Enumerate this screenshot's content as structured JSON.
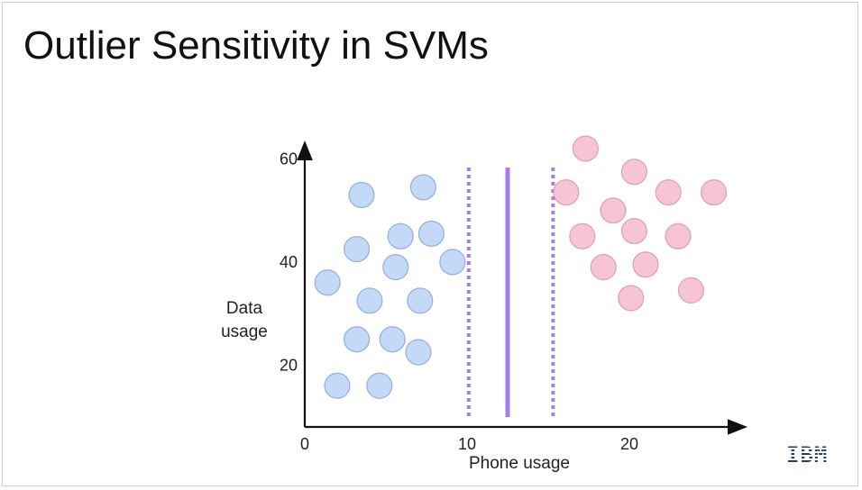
{
  "slide": {
    "title": "Outlier Sensitivity in SVMs",
    "logo_text": "IBM"
  },
  "chart_data": {
    "type": "scatter",
    "xlabel": "Phone usage",
    "ylabel_lines": [
      "Data",
      "usage"
    ],
    "xlim": [
      0,
      26
    ],
    "ylim": [
      8,
      62
    ],
    "x_ticks": [
      0,
      10,
      20
    ],
    "y_ticks": [
      20,
      40,
      60
    ],
    "grid": false,
    "series": [
      {
        "color": "#c4d8f7",
        "stroke": "#5a7cc0",
        "points": [
          [
            3.5,
            53
          ],
          [
            7.3,
            54.5
          ],
          [
            5.9,
            45
          ],
          [
            7.8,
            45.5
          ],
          [
            3.2,
            42.5
          ],
          [
            5.6,
            39
          ],
          [
            9.1,
            40
          ],
          [
            1.4,
            36
          ],
          [
            4.0,
            32.5
          ],
          [
            7.1,
            32.5
          ],
          [
            3.2,
            25
          ],
          [
            5.4,
            25
          ],
          [
            7.0,
            22.5
          ],
          [
            2.0,
            16
          ],
          [
            4.6,
            16
          ]
        ]
      },
      {
        "color": "#f7c4d3",
        "stroke": "#c0708a",
        "points": [
          [
            17.3,
            62
          ],
          [
            20.3,
            57.5
          ],
          [
            16.1,
            53.5
          ],
          [
            22.4,
            53.5
          ],
          [
            25.2,
            53.5
          ],
          [
            19.0,
            50
          ],
          [
            17.1,
            45
          ],
          [
            20.3,
            46
          ],
          [
            23.0,
            45
          ],
          [
            18.4,
            39
          ],
          [
            21.0,
            39.5
          ],
          [
            20.1,
            33
          ],
          [
            23.8,
            34.5
          ]
        ]
      }
    ],
    "lines": [
      {
        "kind": "hyperplane",
        "x": 12.5,
        "style": "solid",
        "color": "#a77ee8"
      },
      {
        "kind": "margin",
        "x": 10.1,
        "style": "dotted",
        "color": "#a77ee8"
      },
      {
        "kind": "margin",
        "x": 15.3,
        "style": "dotted",
        "color": "#a77ee8"
      }
    ]
  }
}
